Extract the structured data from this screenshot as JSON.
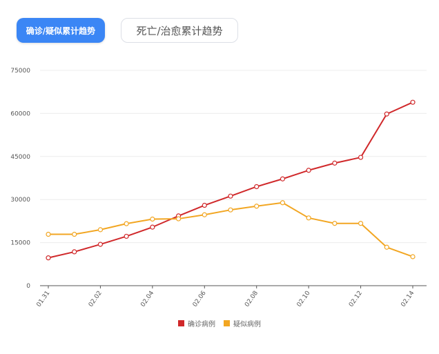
{
  "tabs": {
    "active_label": "确诊/疑似累计趋势",
    "inactive_label": "死亡/治愈累计趋势"
  },
  "colors": {
    "confirmed": "#d0282a",
    "suspected": "#f2a622",
    "active_tab": "#3b86f5"
  },
  "chart_data": {
    "type": "line",
    "x": [
      "01.31",
      "02.01",
      "02.02",
      "02.03",
      "02.04",
      "02.05",
      "02.06",
      "02.07",
      "02.08",
      "02.09",
      "02.10",
      "02.11",
      "02.12",
      "02.13",
      "02.14"
    ],
    "x_tick_labels": [
      "01.31",
      "02.02",
      "02.04",
      "02.06",
      "02.08",
      "02.10",
      "02.12",
      "02.14"
    ],
    "y_tick_labels": [
      "0",
      "15000",
      "30000",
      "45000",
      "60000",
      "75000"
    ],
    "ylim": [
      0,
      75000
    ],
    "grid": true,
    "legend": "bottom-center",
    "series": [
      {
        "name": "确诊病例",
        "values": [
          9700,
          11800,
          14400,
          17200,
          20400,
          24300,
          28000,
          31200,
          34500,
          37200,
          40200,
          42700,
          44700,
          59800,
          63900
        ]
      },
      {
        "name": "疑似病例",
        "values": [
          17900,
          17900,
          19500,
          21600,
          23200,
          23300,
          24700,
          26400,
          27700,
          28900,
          23600,
          21700,
          21700,
          13400,
          10100
        ]
      }
    ]
  }
}
